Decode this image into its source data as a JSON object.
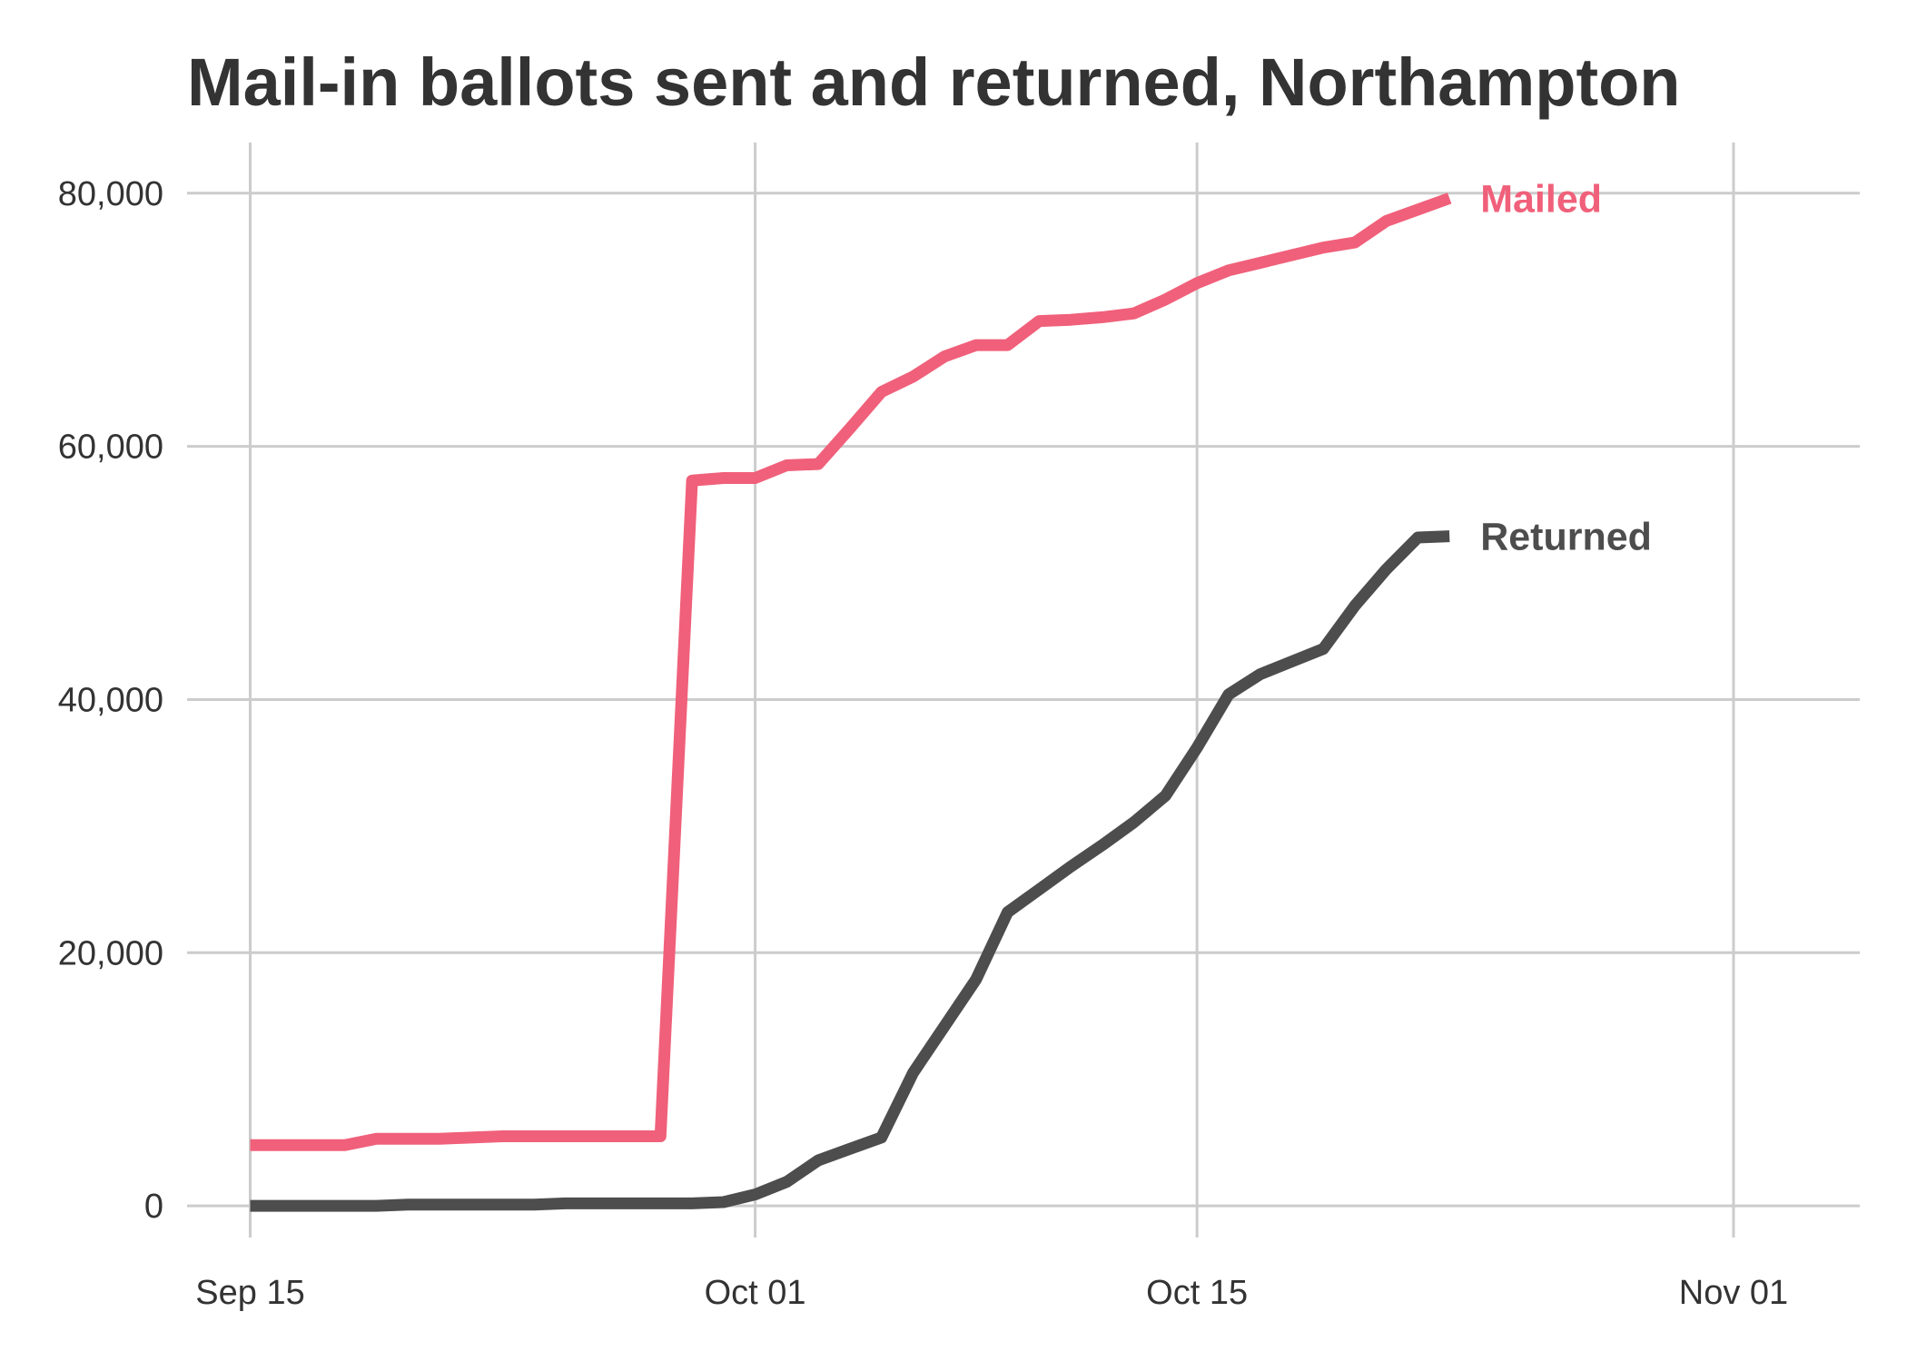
{
  "chart_data": {
    "type": "line",
    "title": "Mail-in ballots sent and returned, Northampton",
    "xlabel": "",
    "ylabel": "",
    "x_axis": {
      "type": "date",
      "range": [
        "2020-09-13",
        "2020-11-05"
      ],
      "ticks": [
        "2020-09-15",
        "2020-10-01",
        "2020-10-15",
        "2020-11-01"
      ],
      "tick_labels": [
        "Sep 15",
        "Oct 01",
        "Oct 15",
        "Nov 01"
      ]
    },
    "y_axis": {
      "range": [
        -2500,
        84000
      ],
      "ticks": [
        0,
        20000,
        40000,
        60000,
        80000
      ],
      "tick_labels": [
        "0",
        "20,000",
        "40,000",
        "60,000",
        "80,000"
      ]
    },
    "grid": true,
    "legend": "direct-labels-right",
    "series": [
      {
        "name": "Mailed",
        "color": "#f0607a",
        "points": [
          [
            "2020-09-15",
            4800
          ],
          [
            "2020-09-16",
            4800
          ],
          [
            "2020-09-17",
            4800
          ],
          [
            "2020-09-18",
            4800
          ],
          [
            "2020-09-19",
            5300
          ],
          [
            "2020-09-20",
            5300
          ],
          [
            "2020-09-21",
            5300
          ],
          [
            "2020-09-22",
            5400
          ],
          [
            "2020-09-23",
            5500
          ],
          [
            "2020-09-24",
            5500
          ],
          [
            "2020-09-25",
            5500
          ],
          [
            "2020-09-26",
            5500
          ],
          [
            "2020-09-27",
            5500
          ],
          [
            "2020-09-28",
            5500
          ],
          [
            "2020-09-29",
            57300
          ],
          [
            "2020-09-30",
            57500
          ],
          [
            "2020-10-01",
            57500
          ],
          [
            "2020-10-02",
            58500
          ],
          [
            "2020-10-03",
            58600
          ],
          [
            "2020-10-04",
            61400
          ],
          [
            "2020-10-05",
            64300
          ],
          [
            "2020-10-06",
            65500
          ],
          [
            "2020-10-07",
            67100
          ],
          [
            "2020-10-08",
            68000
          ],
          [
            "2020-10-09",
            68000
          ],
          [
            "2020-10-10",
            69900
          ],
          [
            "2020-10-11",
            70000
          ],
          [
            "2020-10-12",
            70200
          ],
          [
            "2020-10-13",
            70500
          ],
          [
            "2020-10-14",
            71600
          ],
          [
            "2020-10-15",
            72900
          ],
          [
            "2020-10-16",
            73900
          ],
          [
            "2020-10-17",
            74500
          ],
          [
            "2020-10-18",
            75100
          ],
          [
            "2020-10-19",
            75700
          ],
          [
            "2020-10-20",
            76100
          ],
          [
            "2020-10-21",
            77800
          ],
          [
            "2020-10-22",
            78700
          ],
          [
            "2020-10-23",
            79600
          ]
        ]
      },
      {
        "name": "Returned",
        "color": "#4d4d4d",
        "points": [
          [
            "2020-09-15",
            0
          ],
          [
            "2020-09-16",
            0
          ],
          [
            "2020-09-17",
            0
          ],
          [
            "2020-09-18",
            0
          ],
          [
            "2020-09-19",
            0
          ],
          [
            "2020-09-20",
            100
          ],
          [
            "2020-09-21",
            100
          ],
          [
            "2020-09-22",
            100
          ],
          [
            "2020-09-23",
            100
          ],
          [
            "2020-09-24",
            100
          ],
          [
            "2020-09-25",
            200
          ],
          [
            "2020-09-26",
            200
          ],
          [
            "2020-09-27",
            200
          ],
          [
            "2020-09-28",
            200
          ],
          [
            "2020-09-29",
            200
          ],
          [
            "2020-09-30",
            300
          ],
          [
            "2020-10-01",
            900
          ],
          [
            "2020-10-02",
            1900
          ],
          [
            "2020-10-03",
            3600
          ],
          [
            "2020-10-04",
            4500
          ],
          [
            "2020-10-05",
            5400
          ],
          [
            "2020-10-06",
            10500
          ],
          [
            "2020-10-07",
            14200
          ],
          [
            "2020-10-08",
            17900
          ],
          [
            "2020-10-09",
            23200
          ],
          [
            "2020-10-10",
            25000
          ],
          [
            "2020-10-11",
            26800
          ],
          [
            "2020-10-12",
            28500
          ],
          [
            "2020-10-13",
            30300
          ],
          [
            "2020-10-14",
            32400
          ],
          [
            "2020-10-15",
            36200
          ],
          [
            "2020-10-16",
            40400
          ],
          [
            "2020-10-17",
            42000
          ],
          [
            "2020-10-18",
            43000
          ],
          [
            "2020-10-19",
            44000
          ],
          [
            "2020-10-20",
            47400
          ],
          [
            "2020-10-21",
            50300
          ],
          [
            "2020-10-22",
            52800
          ],
          [
            "2020-10-23",
            52900
          ]
        ]
      }
    ]
  }
}
